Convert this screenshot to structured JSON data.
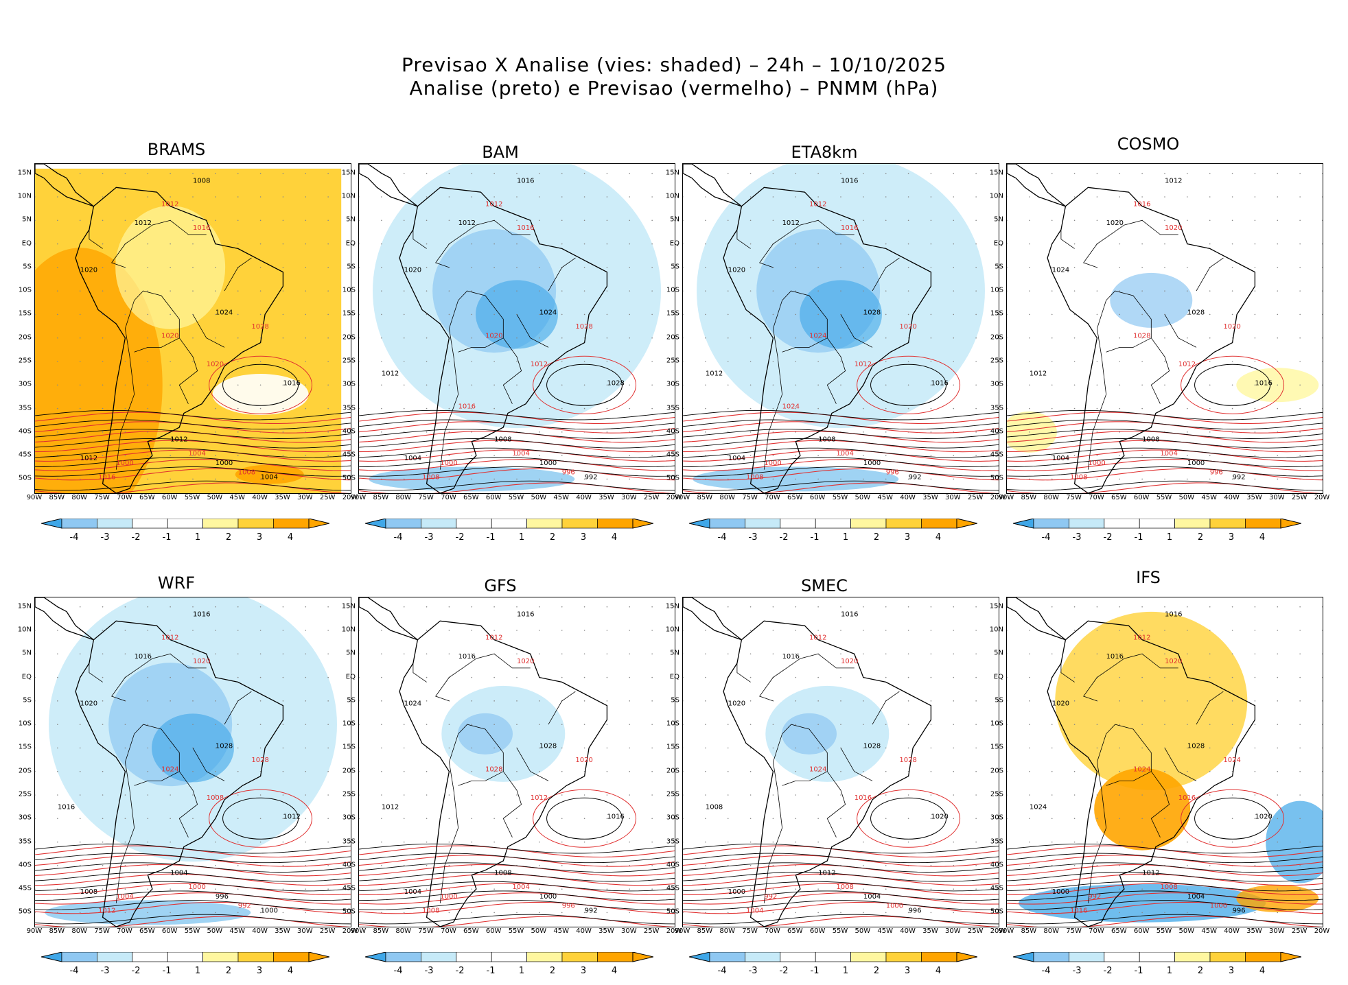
{
  "header": {
    "line1": "Previsao X Analise (vies: shaded) – 24h – 10/10/2025",
    "line2": "Analise (preto) e Previsao (vermelho) – PNMM (hPa)"
  },
  "colors": {
    "neg4": "#3fa7e8",
    "neg3": "#8fc8f2",
    "neg2": "#c6eaf8",
    "neg1": "#ffffff",
    "pos1": "#ffffff",
    "pos2": "#fff7a0",
    "pos3": "#ffd23a",
    "pos4": "#ffa500",
    "analysis_line": "#000000",
    "forecast_line": "#e03030"
  },
  "axes": {
    "lat_labels": [
      "15N",
      "10N",
      "5N",
      "EQ",
      "5S",
      "10S",
      "15S",
      "20S",
      "25S",
      "30S",
      "35S",
      "40S",
      "45S",
      "50S"
    ],
    "lon_labels": [
      "90W",
      "85W",
      "80W",
      "75W",
      "70W",
      "65W",
      "60W",
      "55W",
      "50W",
      "45W",
      "40W",
      "35W",
      "30W",
      "25W",
      "20W"
    ]
  },
  "colorbar": {
    "ticks": [
      "-4",
      "-3",
      "-2",
      "-1",
      "1",
      "2",
      "3",
      "4"
    ]
  },
  "chart_data": {
    "type": "heatmap",
    "variable": "PNMM (hPa)",
    "bias_scale": [
      -4,
      -3,
      -2,
      -1,
      1,
      2,
      3,
      4
    ],
    "domain": {
      "lon_range": [
        -90,
        -20
      ],
      "lat_range": [
        -53,
        17
      ]
    },
    "models": [
      {
        "name": "BRAMS",
        "bias": "positive",
        "labels": [
          "1008",
          "1012",
          "1012",
          "1016",
          "1020",
          "1020",
          "1024",
          "1028",
          "1016",
          "1020",
          "1012",
          "1004",
          "1000",
          "1008",
          "1004",
          "1000",
          "1012",
          "1016"
        ]
      },
      {
        "name": "BAM",
        "bias": "negative",
        "labels": [
          "1016",
          "1012",
          "1012",
          "1016",
          "1020",
          "1020",
          "1024",
          "1028",
          "1028",
          "1012",
          "1008",
          "1004",
          "1000",
          "996",
          "992",
          "1000",
          "1004",
          "1008",
          "1012",
          "1016"
        ]
      },
      {
        "name": "ETA8km",
        "bias": "negative",
        "labels": [
          "1016",
          "1012",
          "1012",
          "1016",
          "1020",
          "1024",
          "1028",
          "1020",
          "1016",
          "1012",
          "1008",
          "1004",
          "1000",
          "996",
          "992",
          "1000",
          "1004",
          "1008",
          "1012",
          "1024"
        ]
      },
      {
        "name": "COSMO",
        "bias": "mixed",
        "labels": [
          "1012",
          "1016",
          "1020",
          "1020",
          "1024",
          "1028",
          "1028",
          "1020",
          "1016",
          "1012",
          "1008",
          "1004",
          "1000",
          "996",
          "992",
          "1000",
          "1004",
          "1008",
          "1012"
        ]
      },
      {
        "name": "WRF",
        "bias": "negative",
        "labels": [
          "1016",
          "1012",
          "1016",
          "1020",
          "1020",
          "1024",
          "1028",
          "1028",
          "1012",
          "1008",
          "1004",
          "1000",
          "996",
          "992",
          "1000",
          "1004",
          "1008",
          "1012",
          "1016"
        ]
      },
      {
        "name": "GFS",
        "bias": "weak negative",
        "labels": [
          "1016",
          "1012",
          "1016",
          "1020",
          "1024",
          "1028",
          "1028",
          "1020",
          "1016",
          "1012",
          "1008",
          "1004",
          "1000",
          "996",
          "992",
          "1000",
          "1004",
          "1008",
          "1012"
        ]
      },
      {
        "name": "SMEC",
        "bias": "weak negative",
        "labels": [
          "1016",
          "1012",
          "1016",
          "1020",
          "1020",
          "1024",
          "1028",
          "1028",
          "1020",
          "1016",
          "1012",
          "1008",
          "1004",
          "1000",
          "996",
          "992",
          "1000",
          "1004",
          "1008"
        ]
      },
      {
        "name": "IFS",
        "bias": "positive north, negative south",
        "labels": [
          "1016",
          "1012",
          "1016",
          "1020",
          "1020",
          "1024",
          "1028",
          "1024",
          "1020",
          "1016",
          "1012",
          "1008",
          "1004",
          "1000",
          "996",
          "992",
          "1000",
          "1016",
          "1024"
        ]
      }
    ]
  }
}
